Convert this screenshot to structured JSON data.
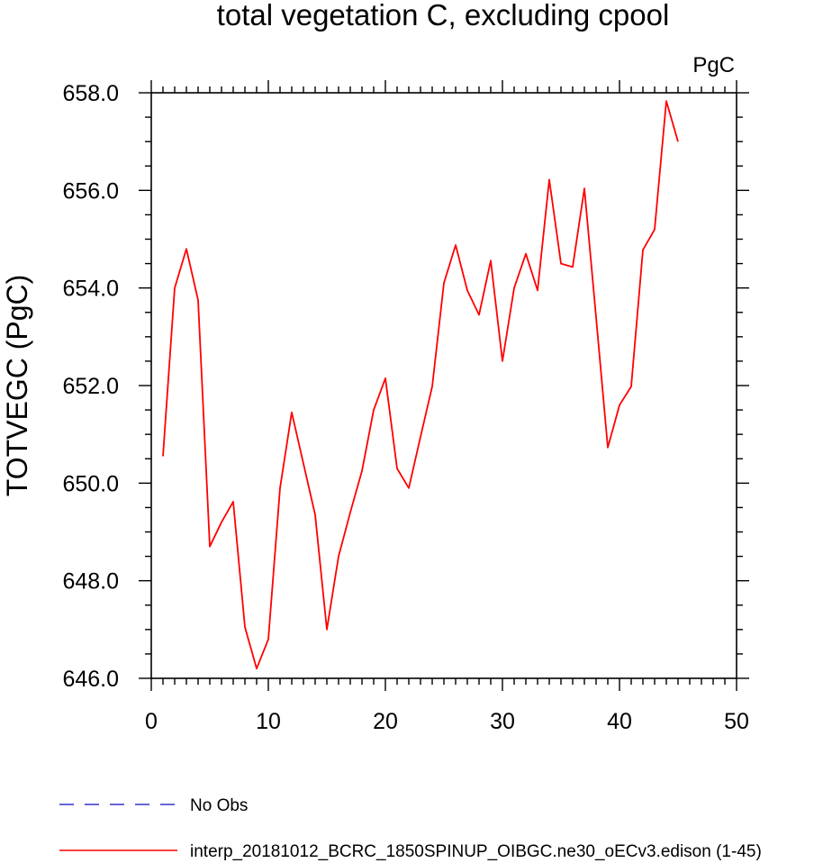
{
  "chart_data": {
    "type": "line",
    "title": "total vegetation C, excluding cpool",
    "units": "PgC",
    "ylabel": "TOTVEGC  (PgC)",
    "xlabel": "",
    "xlim": [
      0,
      50
    ],
    "ylim": [
      646,
      658
    ],
    "x_ticks": [
      0,
      10,
      20,
      30,
      40,
      50
    ],
    "y_ticks": [
      646,
      648,
      650,
      652,
      654,
      656,
      658
    ],
    "y_tick_labels": [
      "646.0",
      "648.0",
      "650.0",
      "652.0",
      "654.0",
      "656.0",
      "658.0"
    ],
    "grid": false,
    "legend_position": "bottom-left",
    "series": [
      {
        "name": "No Obs",
        "color": "#3333cc",
        "style": "dashed",
        "x": [],
        "y": []
      },
      {
        "name": "interp_20181012_BCRC_1850SPINUP_OIBGC.ne30_oECv3.edison (1-45)",
        "color": "#ff0000",
        "style": "solid",
        "x": [
          1,
          2,
          3,
          4,
          5,
          6,
          7,
          8,
          9,
          10,
          11,
          12,
          13,
          14,
          15,
          16,
          17,
          18,
          19,
          20,
          21,
          22,
          23,
          24,
          25,
          26,
          27,
          28,
          29,
          30,
          31,
          32,
          33,
          34,
          35,
          36,
          37,
          38,
          39,
          40,
          41,
          42,
          43,
          44,
          45
        ],
        "y": [
          650.55,
          654.0,
          654.8,
          653.75,
          648.7,
          649.2,
          649.62,
          647.05,
          646.2,
          646.8,
          649.9,
          651.45,
          650.4,
          649.35,
          647.0,
          648.5,
          649.4,
          650.25,
          651.5,
          652.15,
          650.3,
          649.9,
          650.95,
          651.98,
          654.1,
          654.88,
          653.95,
          653.45,
          654.56,
          652.5,
          654.0,
          654.7,
          653.95,
          656.22,
          654.5,
          654.43,
          656.04,
          653.4,
          650.73,
          651.6,
          651.98,
          654.78,
          655.2,
          657.83,
          657.0
        ]
      }
    ]
  }
}
